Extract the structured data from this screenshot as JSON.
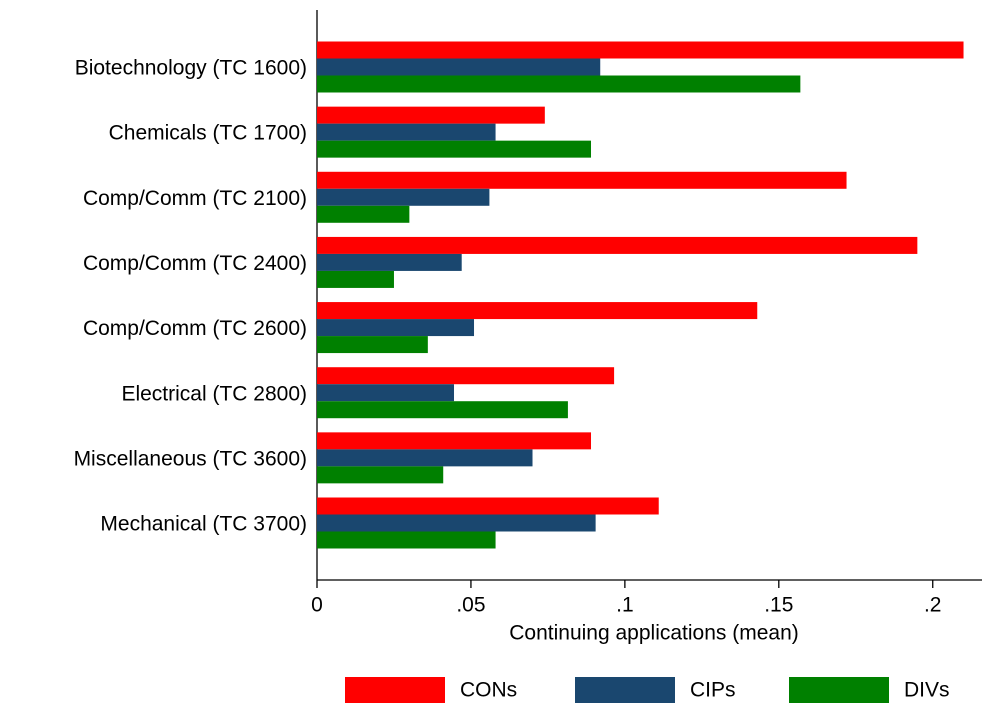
{
  "chart_data": {
    "type": "bar",
    "orientation": "horizontal",
    "x_label": "Continuing applications (mean)",
    "categories": [
      "Biotechnology (TC 1600)",
      "Chemicals (TC 1700)",
      "Comp/Comm (TC 2100)",
      "Comp/Comm (TC 2400)",
      "Comp/Comm (TC 2600)",
      "Electrical (TC 2800)",
      "Miscellaneous (TC 3600)",
      "Mechanical (TC 3700)"
    ],
    "series": [
      {
        "name": "CONs",
        "color": "#ff0000",
        "values": [
          0.21,
          0.074,
          0.172,
          0.195,
          0.143,
          0.0965,
          0.089,
          0.111
        ]
      },
      {
        "name": "CIPs",
        "color": "#1a476f",
        "values": [
          0.092,
          0.058,
          0.056,
          0.047,
          0.051,
          0.0445,
          0.07,
          0.0905
        ]
      },
      {
        "name": "DIVs",
        "color": "#008000",
        "values": [
          0.157,
          0.089,
          0.03,
          0.025,
          0.036,
          0.0815,
          0.041,
          0.058
        ]
      }
    ],
    "xlim": [
      0,
      0.216
    ],
    "xticks": [
      0,
      {
        "value": 0.05,
        "label": ".05"
      },
      {
        "value": 0.1,
        "label": ".1"
      },
      {
        "value": 0.15,
        "label": ".15"
      },
      {
        "value": 0.2,
        "label": ".2"
      }
    ],
    "grid": false,
    "legend": "bottom"
  }
}
